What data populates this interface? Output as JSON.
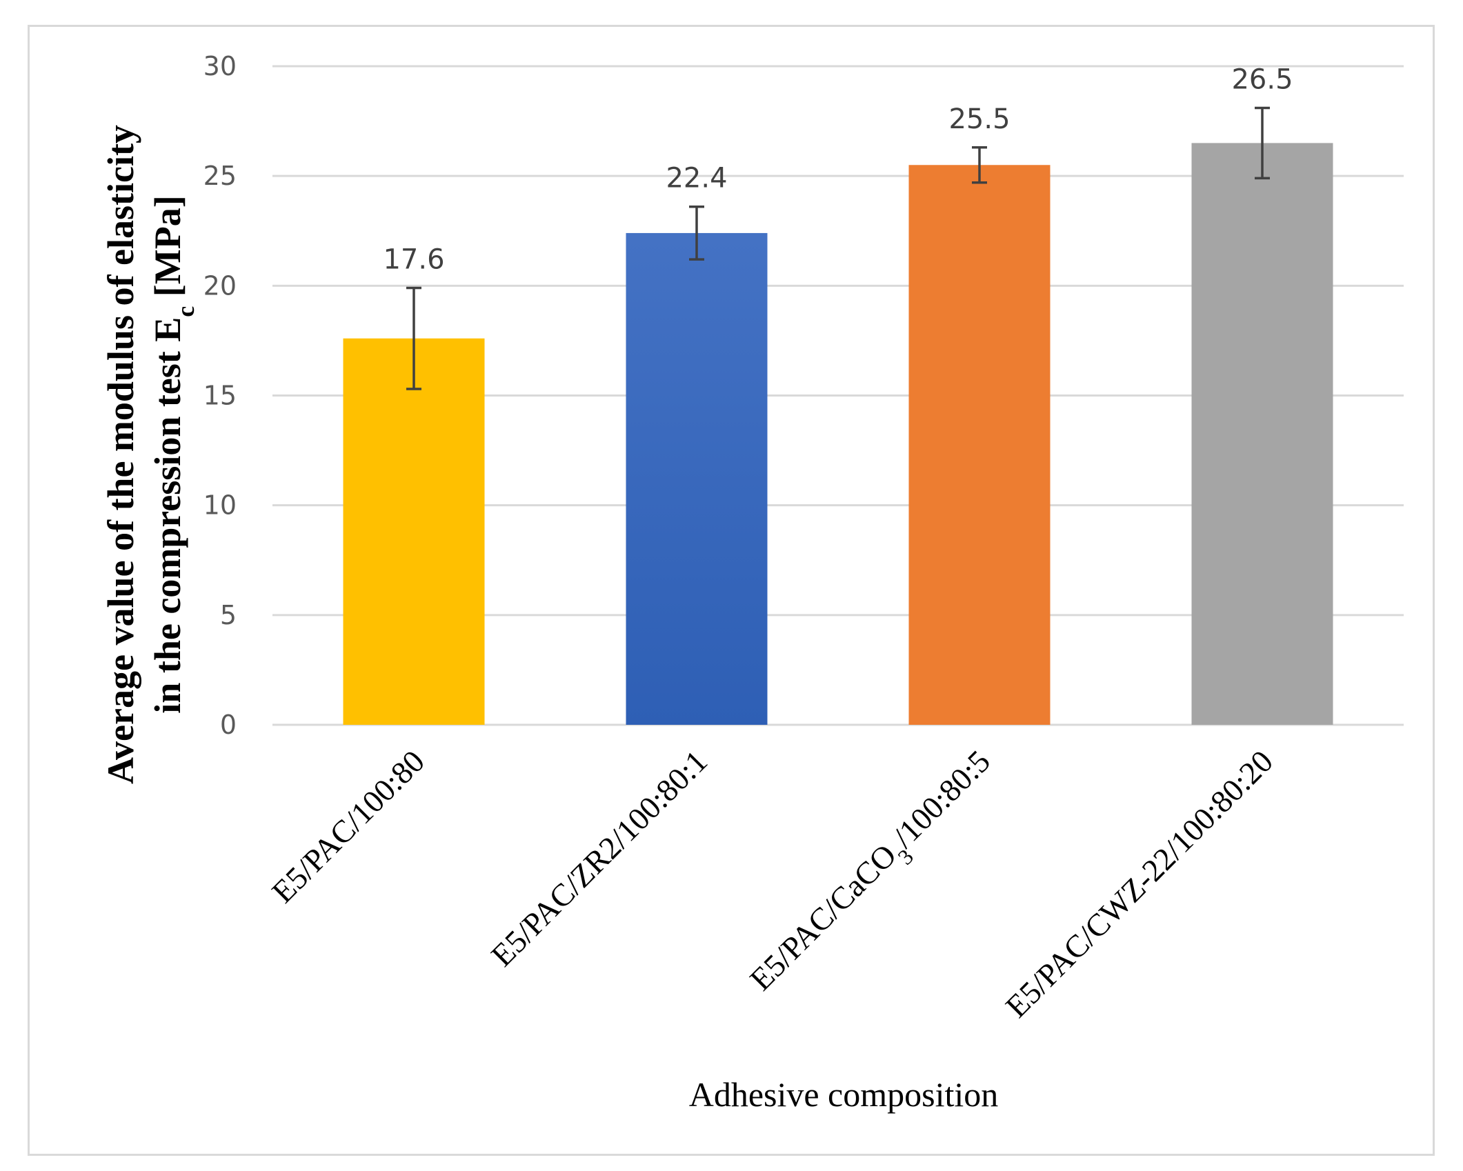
{
  "chart_data": {
    "type": "bar",
    "title": "",
    "categories": [
      {
        "base": "E5/PAC/100:80",
        "sub": "",
        "tail": ""
      },
      {
        "base": "E5/PAC/ZR2/100:80:1",
        "sub": "",
        "tail": ""
      },
      {
        "base": "E5/PAC/CaCO",
        "sub": "3",
        "tail": "/100:80:5"
      },
      {
        "base": "E5/PAC/CWZ-22/100:80:20",
        "sub": "",
        "tail": ""
      }
    ],
    "values": [
      17.6,
      22.4,
      25.5,
      26.5
    ],
    "value_labels": [
      "17.6",
      "22.4",
      "25.5",
      "26.5"
    ],
    "error_bars": [
      {
        "low": 15.3,
        "high": 19.9
      },
      {
        "low": 21.2,
        "high": 23.6
      },
      {
        "low": 24.7,
        "high": 26.3
      },
      {
        "low": 24.9,
        "high": 28.1
      }
    ],
    "bar_colors": [
      "#FFC000",
      "#4472C4",
      "#ED7D31",
      "#A5A5A5"
    ],
    "bar_gradient_bottom": [
      "#FFC000",
      "#2E5FB5",
      "#ED7D31",
      "#A5A5A5"
    ],
    "ylim": [
      0,
      30
    ],
    "yticks": [
      0,
      5,
      10,
      15,
      20,
      25,
      30
    ],
    "grid": true,
    "ylabel_line1": "Average value of the modulus of elasticity",
    "ylabel_line2_prefix": "in the compression test E",
    "ylabel_line2_sub": "c",
    "ylabel_line2_suffix": " [MPa]",
    "xlabel": "Adhesive composition",
    "gridline_color": "#d9d9d9",
    "errorbar_color": "#404040"
  }
}
